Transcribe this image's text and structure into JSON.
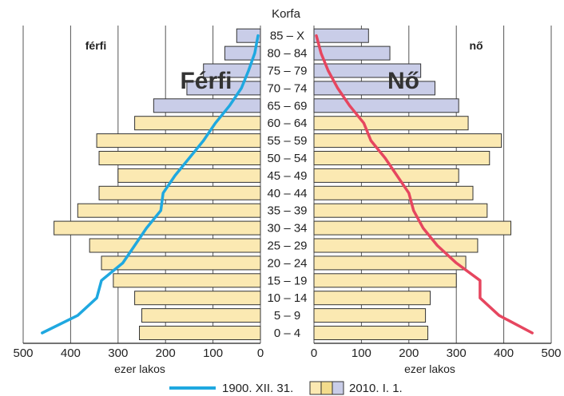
{
  "chart_data": {
    "type": "bar",
    "title": "Korfa",
    "side_labels": {
      "left": "férfi",
      "right": "nő"
    },
    "overlay_labels": {
      "left": "Férfi",
      "right": "Nő"
    },
    "xlabel_left": "ezer lakos",
    "xlabel_right": "ezer lakos",
    "xlim": [
      0,
      500
    ],
    "x_ticks": [
      0,
      100,
      200,
      300,
      400,
      500
    ],
    "x_tick_labels": [
      "0",
      "100",
      "200",
      "300",
      "400",
      "500"
    ],
    "grid": true,
    "categories": [
      "0 – 4",
      "5 – 9",
      "10 – 14",
      "15 – 19",
      "20 – 24",
      "25 – 29",
      "30 – 34",
      "35 – 39",
      "40 – 44",
      "45 – 49",
      "50 – 54",
      "55 – 59",
      "60 – 64",
      "65 – 69",
      "70 – 74",
      "75 – 79",
      "80 – 84",
      "85 – X"
    ],
    "series": [
      {
        "name": "2010. I. 1.",
        "type": "bar",
        "male": [
          255,
          250,
          265,
          310,
          335,
          360,
          435,
          385,
          340,
          300,
          340,
          345,
          265,
          225,
          155,
          120,
          75,
          50
        ],
        "female": [
          240,
          235,
          245,
          300,
          320,
          345,
          415,
          365,
          335,
          305,
          370,
          395,
          325,
          305,
          255,
          225,
          160,
          115
        ]
      },
      {
        "name": "1900. XII. 31.",
        "type": "line",
        "male": [
          460,
          385,
          345,
          335,
          290,
          265,
          240,
          210,
          205,
          180,
          150,
          120,
          95,
          65,
          40,
          25,
          12,
          5
        ],
        "female": [
          460,
          390,
          350,
          350,
          300,
          260,
          230,
          210,
          200,
          175,
          150,
          120,
          105,
          75,
          50,
          30,
          15,
          5
        ]
      }
    ],
    "legend": {
      "placement": "bottom-center",
      "items": [
        {
          "label": "1900. XII. 31.",
          "kind": "line"
        },
        {
          "label": "2010. I. 1.",
          "kind": "bar"
        }
      ]
    }
  },
  "colors": {
    "bar_fill_young": "#fbe9b2",
    "bar_fill_old": "#c9cde8",
    "bar_stroke": "#333333",
    "line_male": "#1fa8e0",
    "line_female": "#e6465f",
    "grid": "#555555"
  }
}
